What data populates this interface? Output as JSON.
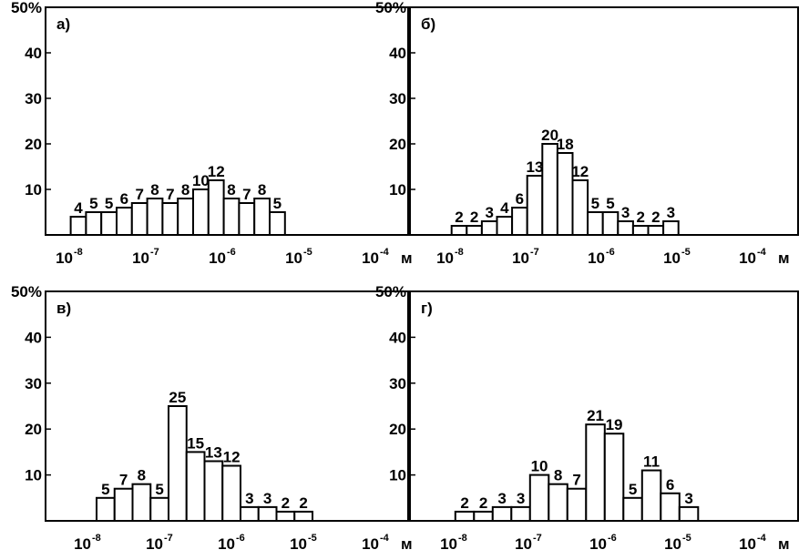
{
  "chart_data": [
    {
      "type": "bar",
      "panel_label": "а)",
      "yticks": [
        "50%",
        "40",
        "30",
        "20",
        "10"
      ],
      "ylim": [
        0,
        50
      ],
      "x_axis": {
        "log_scale": true,
        "ticks": [
          "10",
          "10",
          "10",
          "10",
          "10"
        ],
        "exponents": [
          "-8",
          "-7",
          "-6",
          "-5",
          "-4"
        ],
        "unit": "м"
      },
      "values": [
        4,
        5,
        5,
        6,
        7,
        8,
        7,
        8,
        10,
        12,
        8,
        7,
        8,
        5
      ],
      "x_from": -8.1,
      "bin_width": 0.2
    },
    {
      "type": "bar",
      "panel_label": "б)",
      "yticks": [
        "50%",
        "40",
        "30",
        "20",
        "10"
      ],
      "ylim": [
        0,
        50
      ],
      "x_axis": {
        "log_scale": true,
        "ticks": [
          "10",
          "10",
          "10",
          "10",
          "10"
        ],
        "exponents": [
          "-8",
          "-7",
          "-6",
          "-5",
          "-4"
        ],
        "unit": "м"
      },
      "values": [
        2,
        2,
        3,
        4,
        6,
        13,
        20,
        18,
        12,
        5,
        5,
        3,
        2,
        2,
        3
      ],
      "x_from": -8.1,
      "bin_width": 0.2
    },
    {
      "type": "bar",
      "panel_label": "в)",
      "yticks": [
        "50%",
        "40",
        "30",
        "20",
        "10"
      ],
      "ylim": [
        0,
        50
      ],
      "x_axis": {
        "log_scale": true,
        "ticks": [
          "10",
          "10",
          "10",
          "10",
          "10"
        ],
        "exponents": [
          "-8",
          "-7",
          "-6",
          "-5",
          "-4"
        ],
        "unit": "м"
      },
      "values": [
        5,
        7,
        8,
        5,
        25,
        15,
        13,
        12,
        3,
        3,
        2,
        2
      ],
      "x_from": -8.0,
      "bin_width": 0.25
    },
    {
      "type": "bar",
      "panel_label": "г)",
      "yticks": [
        "50%",
        "40",
        "30",
        "20",
        "10"
      ],
      "ylim": [
        0,
        50
      ],
      "x_axis": {
        "log_scale": true,
        "ticks": [
          "10",
          "10",
          "10",
          "10",
          "10"
        ],
        "exponents": [
          "-8",
          "-7",
          "-6",
          "-5",
          "-4"
        ],
        "unit": "м"
      },
      "values": [
        2,
        2,
        3,
        3,
        10,
        8,
        7,
        21,
        19,
        5,
        11,
        6,
        3
      ],
      "x_from": -8.1,
      "bin_width": 0.25
    }
  ]
}
